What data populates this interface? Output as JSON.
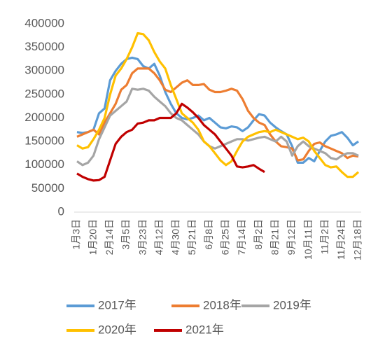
{
  "chart_data": {
    "type": "line",
    "categories": [
      "1月3日",
      null,
      null,
      "1月20日",
      null,
      null,
      "2月14日",
      null,
      null,
      "3月5日",
      null,
      null,
      "3月23日",
      null,
      null,
      "4月12日",
      null,
      null,
      "4月30日",
      null,
      null,
      "5月21日",
      null,
      null,
      "6月8日",
      null,
      null,
      "6月25日",
      null,
      null,
      "7月14日",
      null,
      null,
      "8月2日",
      null,
      null,
      "8月21日",
      null,
      null,
      "9月12日",
      null,
      null,
      "10月11日",
      null,
      null,
      "11月2日",
      null,
      null,
      "11月24日",
      null,
      null,
      "12月18日"
    ],
    "series": [
      {
        "name": "2017年",
        "color": "#5b9bd5",
        "values": [
          170000,
          168000,
          170000,
          175000,
          210000,
          220000,
          280000,
          300000,
          315000,
          325000,
          328000,
          325000,
          310000,
          305000,
          315000,
          290000,
          255000,
          230000,
          210000,
          200000,
          197000,
          200000,
          205000,
          195000,
          200000,
          190000,
          180000,
          178000,
          182000,
          180000,
          172000,
          180000,
          195000,
          208000,
          205000,
          190000,
          180000,
          172000,
          165000,
          140000,
          105000,
          105000,
          115000,
          108000,
          130000,
          150000,
          162000,
          165000,
          170000,
          158000,
          142000,
          150000
        ]
      },
      {
        "name": "2018年",
        "color": "#ed7d31",
        "values": [
          160000,
          165000,
          170000,
          175000,
          165000,
          190000,
          210000,
          230000,
          260000,
          270000,
          295000,
          305000,
          305000,
          305000,
          295000,
          280000,
          260000,
          255000,
          265000,
          275000,
          280000,
          270000,
          270000,
          272000,
          260000,
          255000,
          255000,
          258000,
          262000,
          258000,
          240000,
          215000,
          200000,
          190000,
          185000,
          165000,
          150000,
          140000,
          138000,
          135000,
          110000,
          112000,
          130000,
          145000,
          148000,
          140000,
          135000,
          130000,
          125000,
          115000,
          120000,
          118000
        ]
      },
      {
        "name": "2019年",
        "color": "#a5a5a5",
        "values": [
          108000,
          100000,
          105000,
          120000,
          155000,
          180000,
          205000,
          215000,
          225000,
          235000,
          262000,
          260000,
          262000,
          258000,
          245000,
          235000,
          225000,
          210000,
          200000,
          195000,
          185000,
          175000,
          165000,
          150000,
          140000,
          135000,
          140000,
          145000,
          150000,
          155000,
          155000,
          152000,
          155000,
          158000,
          160000,
          155000,
          150000,
          160000,
          150000,
          120000,
          140000,
          150000,
          140000,
          135000,
          130000,
          125000,
          115000,
          112000,
          120000,
          125000,
          125000,
          120000
        ]
      },
      {
        "name": "2020年",
        "color": "#ffc000",
        "values": [
          142000,
          135000,
          138000,
          155000,
          175000,
          200000,
          250000,
          290000,
          305000,
          325000,
          350000,
          380000,
          378000,
          365000,
          340000,
          320000,
          305000,
          270000,
          240000,
          210000,
          200000,
          190000,
          175000,
          150000,
          140000,
          125000,
          110000,
          100000,
          108000,
          130000,
          150000,
          160000,
          165000,
          170000,
          172000,
          170000,
          175000,
          170000,
          165000,
          160000,
          155000,
          158000,
          150000,
          130000,
          115000,
          100000,
          95000,
          97000,
          85000,
          75000,
          75000,
          85000
        ]
      },
      {
        "name": "2021年",
        "color": "#c00000",
        "values": [
          82000,
          75000,
          70000,
          67000,
          68000,
          75000,
          110000,
          145000,
          160000,
          170000,
          175000,
          188000,
          190000,
          195000,
          195000,
          200000,
          200000,
          200000,
          210000,
          230000,
          222000,
          212000,
          200000,
          185000,
          175000,
          165000,
          150000,
          135000,
          120000,
          97000,
          95000,
          97000,
          100000,
          92000,
          85000,
          null,
          null,
          null,
          null,
          null,
          null,
          null,
          null,
          null,
          null,
          null,
          null,
          null,
          null,
          null,
          null,
          null
        ]
      }
    ],
    "ylim": [
      0,
      400000
    ],
    "yticks": [
      0,
      50000,
      100000,
      150000,
      200000,
      250000,
      300000,
      350000,
      400000
    ],
    "grid": false,
    "legend": "bottom"
  }
}
